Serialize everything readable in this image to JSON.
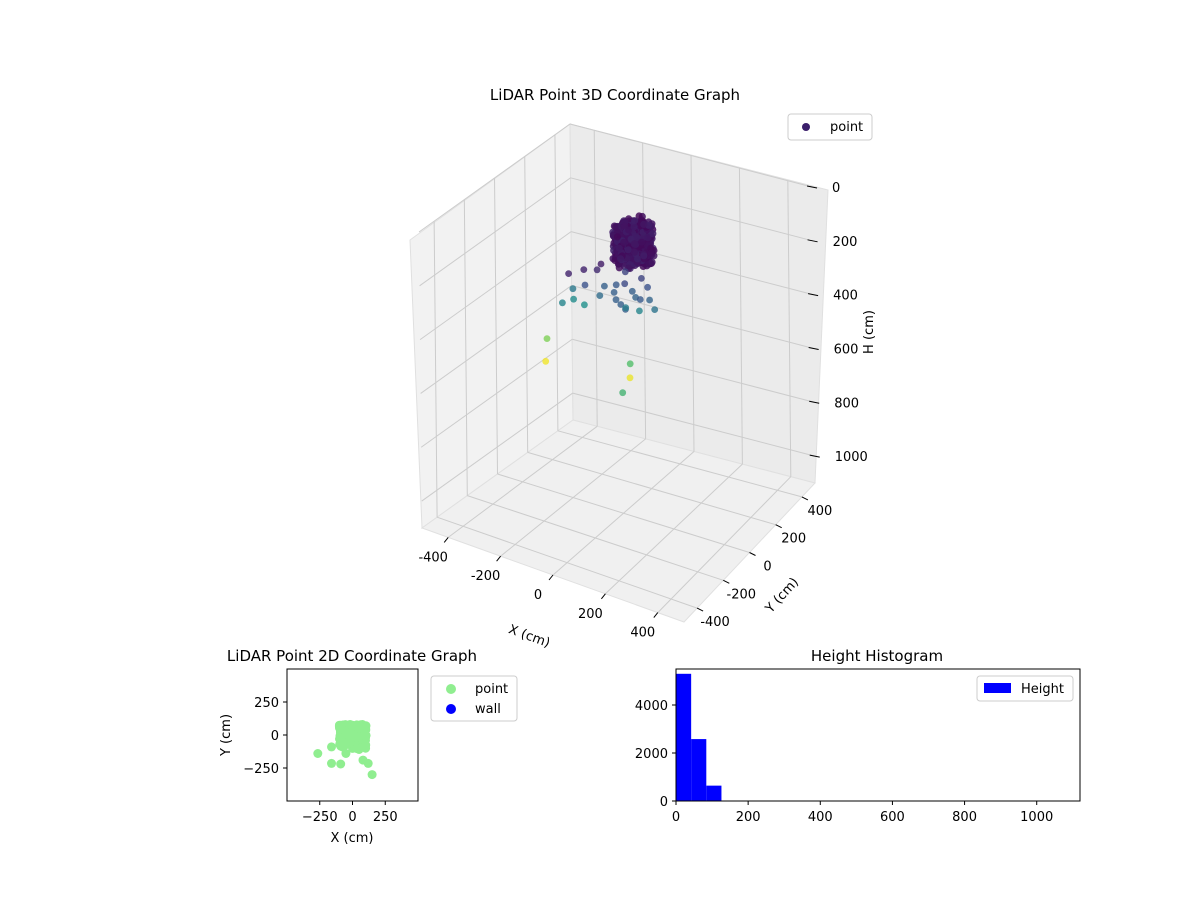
{
  "chart_data": [
    {
      "type": "scatter",
      "projection": "3d",
      "title": "LiDAR Point 3D Coordinate Graph",
      "xlabel": "X (cm)",
      "ylabel": "Y (cm)",
      "zlabel": "H (cm)",
      "xlim": [
        -500,
        500
      ],
      "ylim": [
        -500,
        500
      ],
      "zlim": [
        0,
        1100
      ],
      "z_inverted": true,
      "xticks": [
        -400,
        -200,
        0,
        200,
        400
      ],
      "yticks": [
        -400,
        -200,
        0,
        200,
        400
      ],
      "zticks": [
        0,
        200,
        400,
        600,
        800,
        1000
      ],
      "colormap": "viridis",
      "legend": {
        "entries": [
          "point"
        ],
        "location": "upper right"
      },
      "grid": true,
      "cluster": {
        "x_range": [
          -20,
          120
        ],
        "y_range": [
          -80,
          80
        ],
        "z_range": [
          20,
          150
        ]
      },
      "points": [
        {
          "x": -160,
          "y": 20,
          "z": 250,
          "c": 0.1
        },
        {
          "x": -180,
          "y": -50,
          "z": 240,
          "c": 0.1
        },
        {
          "x": -130,
          "y": 60,
          "z": 260,
          "c": 0.12
        },
        {
          "x": -120,
          "y": 70,
          "z": 240,
          "c": 0.08
        },
        {
          "x": -150,
          "y": 10,
          "z": 300,
          "c": 0.25
        },
        {
          "x": -90,
          "y": 40,
          "z": 300,
          "c": 0.3
        },
        {
          "x": -80,
          "y": -10,
          "z": 310,
          "c": 0.35
        },
        {
          "x": -60,
          "y": 70,
          "z": 300,
          "c": 0.28
        },
        {
          "x": -40,
          "y": 20,
          "z": 300,
          "c": 0.3
        },
        {
          "x": -20,
          "y": 60,
          "z": 280,
          "c": 0.22
        },
        {
          "x": -10,
          "y": -20,
          "z": 300,
          "c": 0.3
        },
        {
          "x": 10,
          "y": 60,
          "z": 300,
          "c": 0.3
        },
        {
          "x": 20,
          "y": -40,
          "z": 300,
          "c": 0.3
        },
        {
          "x": 40,
          "y": 30,
          "z": 300,
          "c": 0.32
        },
        {
          "x": 50,
          "y": -60,
          "z": 300,
          "c": 0.3
        },
        {
          "x": 70,
          "y": 10,
          "z": 290,
          "c": 0.28
        },
        {
          "x": 60,
          "y": 80,
          "z": 280,
          "c": 0.25
        },
        {
          "x": 90,
          "y": 40,
          "z": 300,
          "c": 0.32
        },
        {
          "x": 30,
          "y": 90,
          "z": 260,
          "c": 0.2
        },
        {
          "x": -40,
          "y": 100,
          "z": 260,
          "c": 0.2
        },
        {
          "x": -200,
          "y": -60,
          "z": 350,
          "c": 0.45
        },
        {
          "x": -210,
          "y": 30,
          "z": 340,
          "c": 0.4
        },
        {
          "x": -190,
          "y": 0,
          "z": 360,
          "c": 0.48
        },
        {
          "x": -130,
          "y": -30,
          "z": 350,
          "c": 0.5
        },
        {
          "x": 0,
          "y": 30,
          "z": 350,
          "c": 0.42
        },
        {
          "x": 60,
          "y": 20,
          "z": 340,
          "c": 0.45
        },
        {
          "x": 110,
          "y": 40,
          "z": 330,
          "c": 0.38
        },
        {
          "x": -280,
          "y": -30,
          "z": 520,
          "c": 0.8
        },
        {
          "x": -280,
          "y": -40,
          "z": 600,
          "c": 0.98
        },
        {
          "x": 10,
          "y": 40,
          "z": 560,
          "c": 0.7
        },
        {
          "x": 20,
          "y": 20,
          "z": 600,
          "c": 0.97
        },
        {
          "x": 30,
          "y": -50,
          "z": 620,
          "c": 0.65
        }
      ]
    },
    {
      "type": "scatter",
      "title": "LiDAR Point 2D Coordinate Graph",
      "xlabel": "X (cm)",
      "ylabel": "Y (cm)",
      "xlim": [
        -500,
        500
      ],
      "ylim": [
        -500,
        500
      ],
      "xticks": [
        -250,
        0,
        250
      ],
      "yticks": [
        -250,
        0,
        250
      ],
      "legend": {
        "entries": [
          "point",
          "wall"
        ],
        "location": "outside right"
      },
      "grid": false,
      "series": [
        {
          "name": "point",
          "color": "#90ee90",
          "blob": {
            "x_range": [
              -100,
              140
            ],
            "y_range": [
              -140,
              80
            ]
          },
          "points": [
            {
              "x": -265,
              "y": -140
            },
            {
              "x": -160,
              "y": -90
            },
            {
              "x": -160,
              "y": -215
            },
            {
              "x": -90,
              "y": -220
            },
            {
              "x": -50,
              "y": -140
            },
            {
              "x": 80,
              "y": -190
            },
            {
              "x": 120,
              "y": -215
            },
            {
              "x": 150,
              "y": -300
            },
            {
              "x": 50,
              "y": -110
            },
            {
              "x": 100,
              "y": -100
            },
            {
              "x": -60,
              "y": -80
            }
          ]
        },
        {
          "name": "wall",
          "color": "#0000ff",
          "points": []
        }
      ]
    },
    {
      "type": "bar",
      "subtype": "histogram",
      "title": "Height Histogram",
      "xlim": [
        0,
        1120
      ],
      "ylim": [
        0,
        5500
      ],
      "xticks": [
        0,
        200,
        400,
        600,
        800,
        1000
      ],
      "yticks": [
        0,
        2000,
        4000
      ],
      "legend": {
        "entries": [
          "Height"
        ],
        "location": "upper right"
      },
      "grid": false,
      "series": [
        {
          "name": "Height",
          "color": "#0000ff",
          "bins": [
            {
              "start": 0,
              "end": 42,
              "count": 5300
            },
            {
              "start": 42,
              "end": 84,
              "count": 2580
            },
            {
              "start": 84,
              "end": 126,
              "count": 640
            }
          ]
        }
      ]
    }
  ]
}
